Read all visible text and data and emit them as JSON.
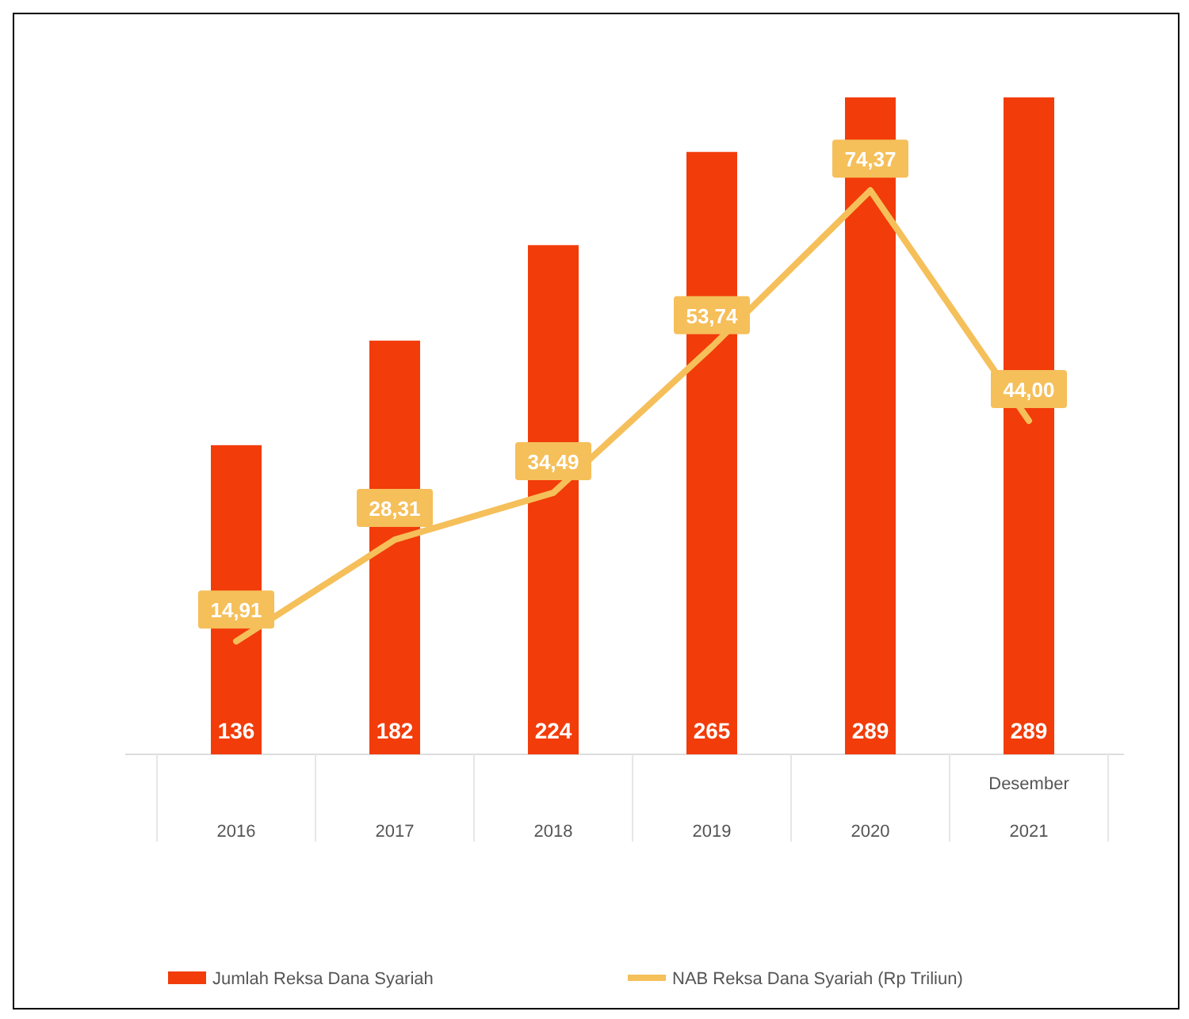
{
  "chart_data": {
    "type": "bar",
    "categories": [
      "2016",
      "2017",
      "2018",
      "2019",
      "2020",
      "Desember\n2021"
    ],
    "series": [
      {
        "name": "Jumlah Reksa Dana Syariah",
        "color": "#f23c0a",
        "values": [
          136,
          182,
          224,
          265,
          289,
          289
        ]
      },
      {
        "name": "NAB Reksa Dana Syariah (Rp Triliun)",
        "type": "line",
        "axis": "y2",
        "color": "#f5bf5a",
        "values": [
          14.91,
          28.31,
          34.49,
          53.74,
          74.37,
          44.0
        ],
        "value_labels": [
          "14,91",
          "28,31",
          "34,49",
          "53,74",
          "74,37",
          "44,00"
        ]
      }
    ],
    "data_labels": true,
    "legend": "bottom"
  }
}
